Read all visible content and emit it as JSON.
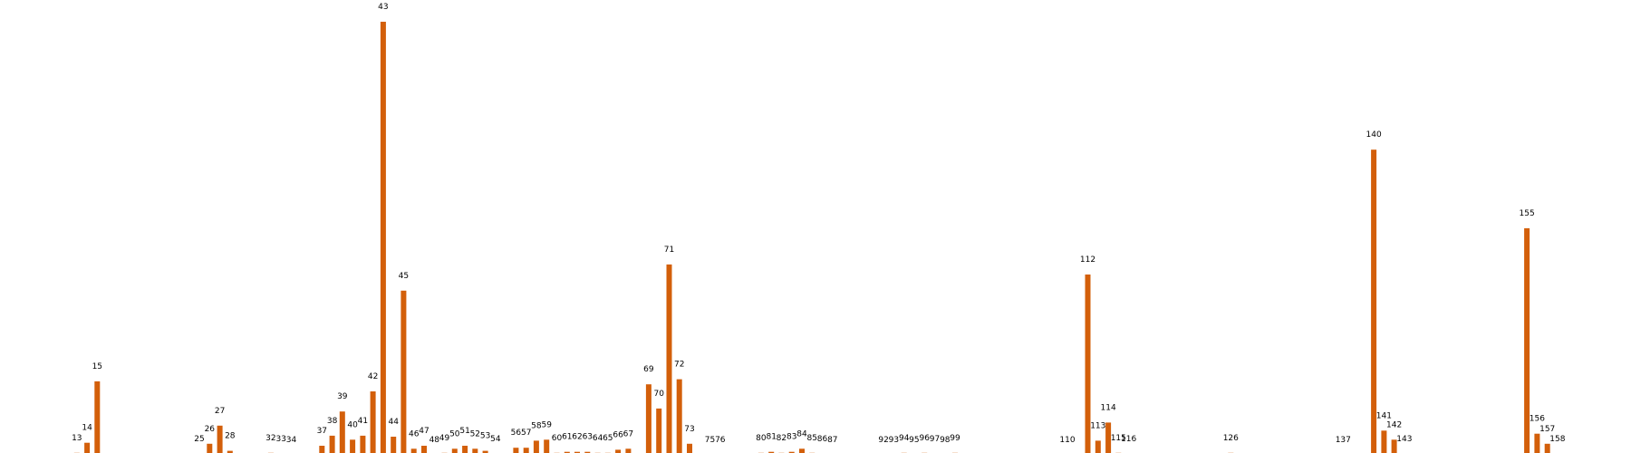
{
  "colors": {
    "bar": "#d35f0a",
    "text": "#000000",
    "background": "#ffffff"
  },
  "chart_data": {
    "type": "bar",
    "title": "",
    "xlabel": "",
    "ylabel": "",
    "grid": false,
    "axes_visible": false,
    "ylim": [
      0,
      43
    ],
    "categories": [
      "13",
      "14",
      "15",
      "25",
      "26",
      "27",
      "28",
      "32",
      "33",
      "34",
      "37",
      "38",
      "39",
      "40",
      "41",
      "42",
      "43",
      "44",
      "45",
      "46",
      "47",
      "48",
      "49",
      "50",
      "51",
      "52",
      "53",
      "54",
      "56",
      "57",
      "58",
      "59",
      "60",
      "61",
      "62",
      "63",
      "64",
      "65",
      "66",
      "67",
      "69",
      "70",
      "71",
      "72",
      "73",
      "75",
      "76",
      "80",
      "81",
      "82",
      "83",
      "84",
      "85",
      "86",
      "87",
      "92",
      "93",
      "94",
      "95",
      "96",
      "97",
      "98",
      "99",
      "110",
      "112",
      "113",
      "114",
      "115",
      "116",
      "126",
      "137",
      "140",
      "141",
      "142",
      "143",
      "155",
      "156",
      "157",
      "158"
    ],
    "positions": [
      13,
      14,
      15,
      25,
      26,
      27,
      28,
      32,
      33,
      34,
      37,
      38,
      39,
      40,
      41,
      42,
      43,
      44,
      45,
      46,
      47,
      48,
      49,
      50,
      51,
      52,
      53,
      54,
      56,
      57,
      58,
      59,
      60,
      61,
      62,
      63,
      64,
      65,
      66,
      67,
      69,
      70,
      71,
      72,
      73,
      75,
      76,
      80,
      81,
      82,
      83,
      84,
      85,
      86,
      87,
      92,
      93,
      94,
      95,
      96,
      97,
      98,
      99,
      110,
      112,
      113,
      114,
      115,
      116,
      126,
      137,
      140,
      141,
      142,
      143,
      155,
      156,
      157,
      158
    ],
    "values": [
      0.2,
      1.2,
      7.3,
      0.1,
      1.1,
      2.9,
      0.4,
      0.2,
      0.1,
      0,
      0.9,
      1.9,
      4.3,
      1.5,
      1.9,
      6.3,
      43,
      1.8,
      16.3,
      0.6,
      0.9,
      0,
      0.2,
      0.6,
      0.9,
      0.6,
      0.4,
      0.1,
      0.7,
      0.7,
      1.4,
      1.5,
      0.2,
      0.3,
      0.3,
      0.3,
      0.2,
      0.2,
      0.5,
      0.6,
      7.0,
      4.6,
      18.9,
      7.5,
      1.1,
      0,
      0,
      0.2,
      0.3,
      0.2,
      0.3,
      0.6,
      0.2,
      0.1,
      0,
      0,
      0,
      0.2,
      0,
      0.2,
      0.1,
      0,
      0.2,
      0,
      17.9,
      1.4,
      3.2,
      0.2,
      0.1,
      0.2,
      0,
      30.3,
      2.4,
      1.5,
      0.1,
      22.5,
      2.1,
      1.1,
      0.1
    ]
  }
}
